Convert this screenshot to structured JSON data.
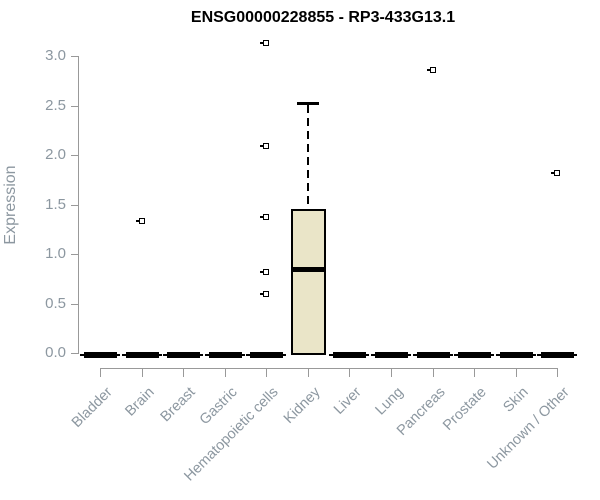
{
  "title": "ENSG00000228855 - RP3-433G13.1",
  "chart_data": {
    "type": "boxplot",
    "title": "ENSG00000228855 - RP3-433G13.1",
    "xlabel": "",
    "ylabel": "Expression",
    "ylim": [
      0.0,
      3.2
    ],
    "yticks": [
      "0.0",
      "0.5",
      "1.0",
      "1.5",
      "2.0",
      "2.5",
      "3.0"
    ],
    "grid": false,
    "legend": "none",
    "categories": [
      "Bladder",
      "Brain",
      "Breast",
      "Gastric",
      "Hematopoietic cells",
      "Kidney",
      "Liver",
      "Lung",
      "Pancreas",
      "Prostate",
      "Skin",
      "Unknown / Other"
    ],
    "boxes": [
      {
        "category": "Bladder",
        "min": 0,
        "q1": 0,
        "median": 0,
        "q3": 0,
        "max": 0,
        "outliers": []
      },
      {
        "category": "Brain",
        "min": 0,
        "q1": 0,
        "median": 0,
        "q3": 0,
        "max": 0,
        "outliers": [
          1.33
        ]
      },
      {
        "category": "Breast",
        "min": 0,
        "q1": 0,
        "median": 0,
        "q3": 0,
        "max": 0,
        "outliers": []
      },
      {
        "category": "Gastric",
        "min": 0,
        "q1": 0,
        "median": 0,
        "q3": 0,
        "max": 0,
        "outliers": []
      },
      {
        "category": "Hematopoietic cells",
        "min": 0,
        "q1": 0,
        "median": 0,
        "q3": 0,
        "max": 0,
        "outliers": [
          0.6,
          0.82,
          1.37,
          2.09,
          3.13
        ]
      },
      {
        "category": "Kidney",
        "min": 0,
        "q1": 0,
        "median": 0.84,
        "q3": 1.45,
        "max": 2.53,
        "outliers": []
      },
      {
        "category": "Liver",
        "min": 0,
        "q1": 0,
        "median": 0,
        "q3": 0,
        "max": 0,
        "outliers": []
      },
      {
        "category": "Lung",
        "min": 0,
        "q1": 0,
        "median": 0,
        "q3": 0,
        "max": 0,
        "outliers": []
      },
      {
        "category": "Pancreas",
        "min": 0,
        "q1": 0,
        "median": 0,
        "q3": 0,
        "max": 0,
        "outliers": [
          2.86
        ]
      },
      {
        "category": "Prostate",
        "min": 0,
        "q1": 0,
        "median": 0,
        "q3": 0,
        "max": 0,
        "outliers": []
      },
      {
        "category": "Skin",
        "min": 0,
        "q1": 0,
        "median": 0,
        "q3": 0,
        "max": 0,
        "outliers": []
      },
      {
        "category": "Unknown / Other",
        "min": 0,
        "q1": 0,
        "median": 0,
        "q3": 0,
        "max": 0,
        "outliers": [
          1.82
        ]
      }
    ],
    "colors": {
      "box_fill": "#EAE5C8",
      "box_border": "#000000",
      "median": "#000000",
      "outlier": "#000000",
      "axis": "#999999",
      "tick_label": "#8C97A0",
      "title": "#000000"
    }
  }
}
